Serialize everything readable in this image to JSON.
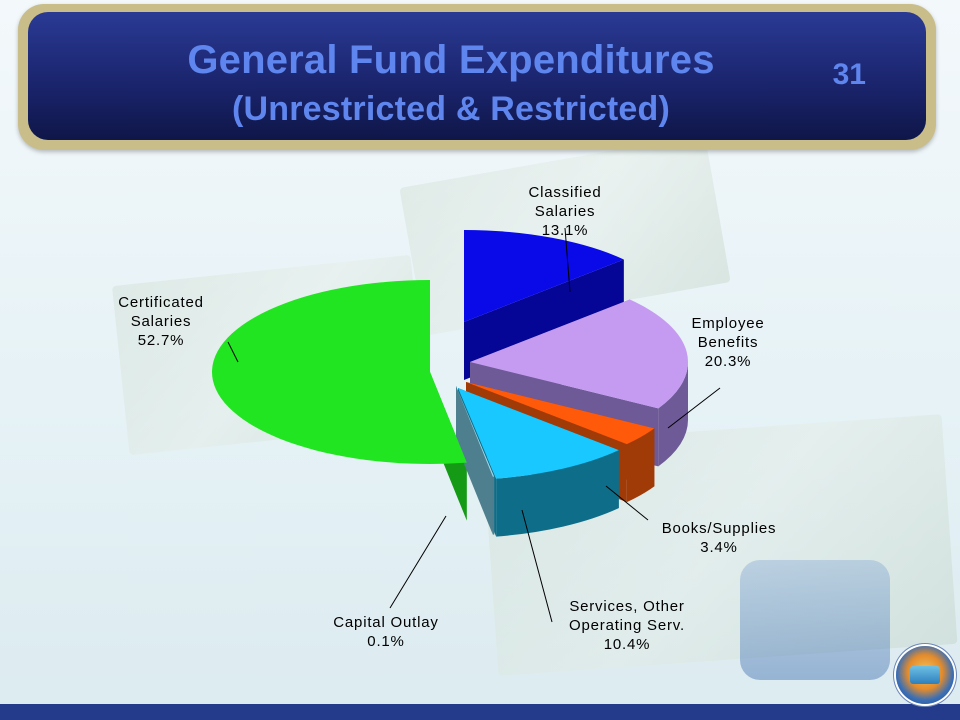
{
  "header": {
    "title_line1": "General Fund Expenditures",
    "title_line2": "(Unrestricted & Restricted)",
    "slide_number": "31"
  },
  "colors": {
    "title": "#5e86ee",
    "header_bg": "#1b256e",
    "header_frame": "#c9bd8a"
  },
  "chart_data": {
    "type": "pie",
    "title": "",
    "slices": [
      {
        "line1": "Certificated",
        "line2": "Salaries",
        "pct_label": "52.7%",
        "value": 52.7,
        "color": "#22e522",
        "side": "#149a14"
      },
      {
        "line1": "Classified",
        "line2": "Salaries",
        "pct_label": "13.1%",
        "value": 13.1,
        "color": "#0a0ae8",
        "side": "#050596"
      },
      {
        "line1": "Employee",
        "line2": "Benefits",
        "pct_label": "20.3%",
        "value": 20.3,
        "color": "#c59bf2",
        "side": "#6e5a96"
      },
      {
        "line1": "Books/Supplies",
        "line2": "",
        "pct_label": "3.4%",
        "value": 3.4,
        "color": "#ff5a0a",
        "side": "#a03a06"
      },
      {
        "line1": "Services, Other",
        "line2": "Operating Serv.",
        "pct_label": "10.4%",
        "value": 10.4,
        "color": "#19c8ff",
        "side": "#0e6e8a"
      },
      {
        "line1": "Capital Outlay",
        "line2": "",
        "pct_label": "0.1%",
        "value": 0.1,
        "color": "#9cd8ec",
        "side": "#4e7f8e"
      }
    ]
  }
}
